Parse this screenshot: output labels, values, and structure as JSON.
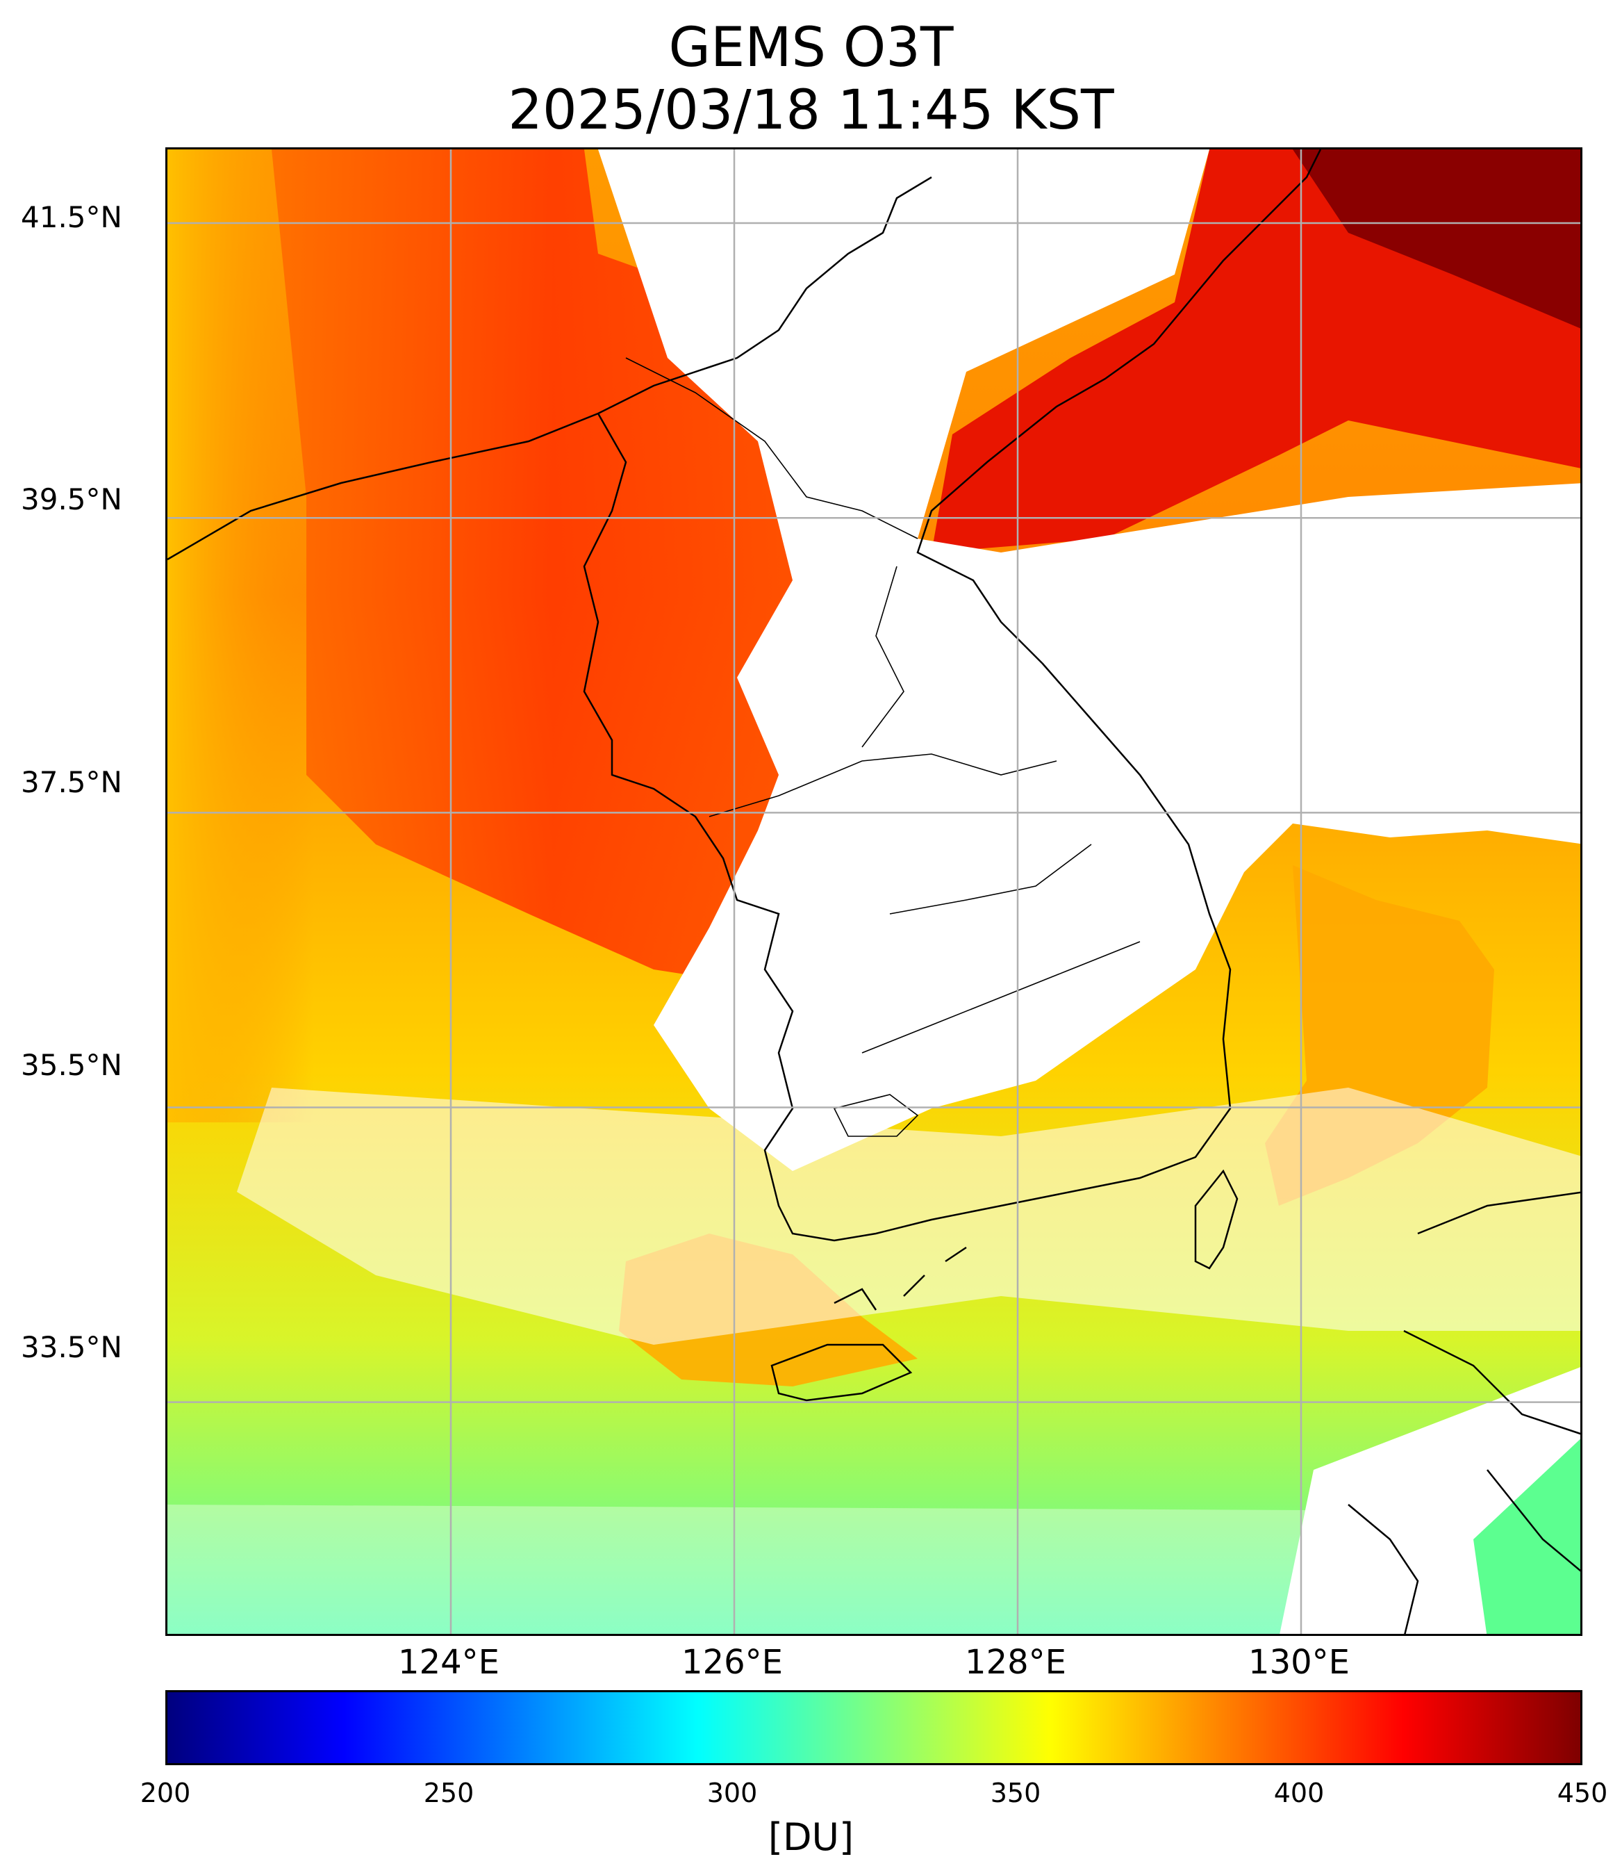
{
  "title": "GEMS O3T",
  "subtitle": "2025/03/18 11:45 KST",
  "lat_labels": [
    "41.5°N",
    "39.5°N",
    "37.5°N",
    "35.5°N",
    "33.5°N"
  ],
  "lon_labels": [
    "124°E",
    "126°E",
    "128°E",
    "130°E"
  ],
  "colorbar": {
    "ticks": [
      "200",
      "250",
      "300",
      "350",
      "400",
      "450"
    ],
    "label": "[DU]",
    "range": [
      200,
      450
    ],
    "colormap": "jet"
  },
  "colors": {
    "jet": [
      "#00007f",
      "#0000ff",
      "#007fff",
      "#00ffff",
      "#7fff7f",
      "#ffff00",
      "#ff7f00",
      "#ff0000",
      "#7f0000"
    ],
    "grid": "#b0b0b0",
    "coast": "#000000"
  },
  "extent": {
    "lon": [
      122.0,
      132.0
    ],
    "lat": [
      31.9,
      42.0
    ]
  }
}
